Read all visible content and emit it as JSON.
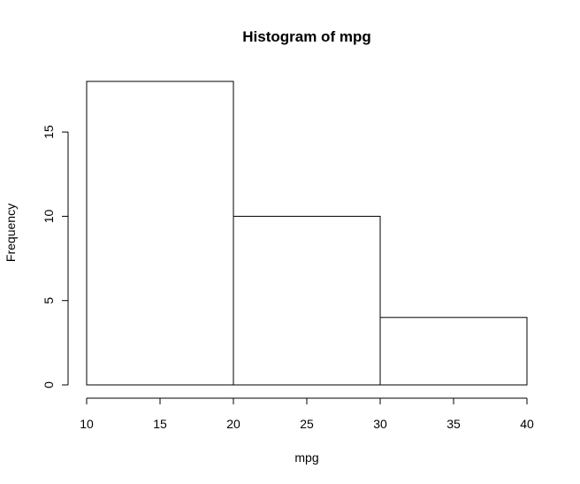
{
  "chart_data": {
    "type": "bar",
    "title": "Histogram of mpg",
    "xlabel": "mpg",
    "ylabel": "Frequency",
    "bins": [
      {
        "start": 10,
        "end": 20,
        "count": 18
      },
      {
        "start": 20,
        "end": 30,
        "count": 10
      },
      {
        "start": 30,
        "end": 40,
        "count": 4
      }
    ],
    "categories": [
      "10-20",
      "20-30",
      "30-40"
    ],
    "values": [
      18,
      10,
      4
    ],
    "xlim": [
      10,
      40
    ],
    "ylim": [
      0,
      18
    ],
    "x_ticks": [
      "10",
      "15",
      "20",
      "25",
      "30",
      "35",
      "40"
    ],
    "y_ticks": [
      "0",
      "5",
      "10",
      "15"
    ],
    "grid": false,
    "legend": "none",
    "colors": {
      "bar_fill": "#ffffff",
      "bar_stroke": "#000000",
      "axis": "#000000",
      "background": "#ffffff"
    }
  }
}
